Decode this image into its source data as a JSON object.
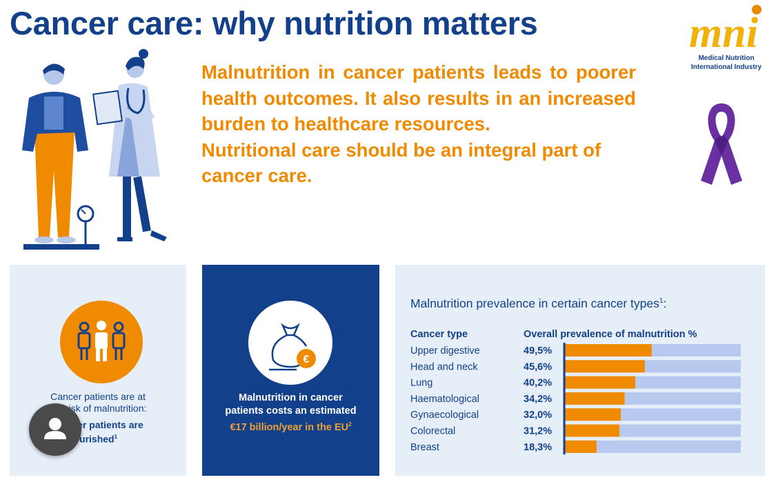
{
  "header": {
    "title": "Cancer care: why nutrition matters"
  },
  "intro": {
    "paragraph1": "Malnutrition in cancer patients leads to poorer health outcomes. It also results in an increased burden to healthcare resources.",
    "paragraph2": "Nutritional care should be an integral part of cancer care."
  },
  "logo": {
    "mark": "mni",
    "line1": "Medical Nutrition",
    "line2": "International Industry"
  },
  "colors": {
    "navy": "#12408a",
    "orange": "#f08a00",
    "panel_bg": "#e6eef8",
    "bar_track": "#b7c9ee",
    "ribbon": "#6a2fa0"
  },
  "panel_risk": {
    "icon": "people-icon",
    "line1": "Cancer patients are at",
    "line2": "isk of malnutrition:",
    "line3": "cer patients are",
    "line4": "nourished",
    "footnote": "1"
  },
  "panel_cost": {
    "icon": "money-bag-euro-icon",
    "line1": "Malnutrition in cancer",
    "line2": "patients costs an estimated",
    "cost": "€17 billion/year in the EU",
    "footnote": "2"
  },
  "chart_data": {
    "type": "bar",
    "orientation": "horizontal",
    "title": "Malnutrition prevalence in certain cancer types",
    "title_footnote": "1",
    "category_header": "Cancer type",
    "value_header": "Overall prevalence of malnutrition %",
    "categories": [
      "Upper digestive",
      "Head and neck",
      "Lung",
      "Haematological",
      "Gynaecological",
      "Colorectal",
      "Breast"
    ],
    "values": [
      49.5,
      45.6,
      40.2,
      34.2,
      32.0,
      31.2,
      18.3
    ],
    "value_labels": [
      "49,5%",
      "45,6%",
      "40,2%",
      "34,2%",
      "32,0%",
      "31,2%",
      "18,3%"
    ],
    "xlim": [
      0,
      100
    ],
    "grid": false
  }
}
